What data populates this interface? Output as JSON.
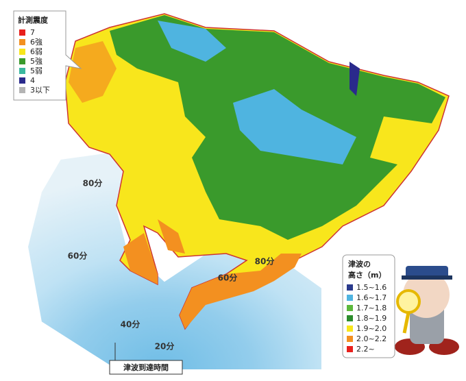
{
  "legend_intensity": {
    "title": "計測震度",
    "items": [
      {
        "label": "7",
        "color": "#e8201c"
      },
      {
        "label": "6強",
        "color": "#f39020"
      },
      {
        "label": "6弱",
        "color": "#f8e61c"
      },
      {
        "label": "5強",
        "color": "#3a9a2c"
      },
      {
        "label": "5弱",
        "color": "#3bb8a0"
      },
      {
        "label": "4",
        "color": "#2a2a8c"
      },
      {
        "label": "3以下",
        "color": "#b4b4b4"
      }
    ]
  },
  "legend_tsunami": {
    "title": [
      "津波の",
      "高さ（m）"
    ],
    "items": [
      {
        "label": "1.5~1.6",
        "color": "#2a3a8c"
      },
      {
        "label": "1.6~1.7",
        "color": "#4fb4e0"
      },
      {
        "label": "1.7~1.8",
        "color": "#5cb83c"
      },
      {
        "label": "1.8~1.9",
        "color": "#2c8c2c"
      },
      {
        "label": "1.9~2.0",
        "color": "#f8e61c"
      },
      {
        "label": "2.0~2.2",
        "color": "#f39020"
      },
      {
        "label": "2.2~",
        "color": "#e8201c"
      }
    ]
  },
  "arrival_labels": [
    "80分",
    "60分",
    "60分",
    "80分",
    "40分",
    "20分"
  ],
  "caption": "津波到達時間"
}
